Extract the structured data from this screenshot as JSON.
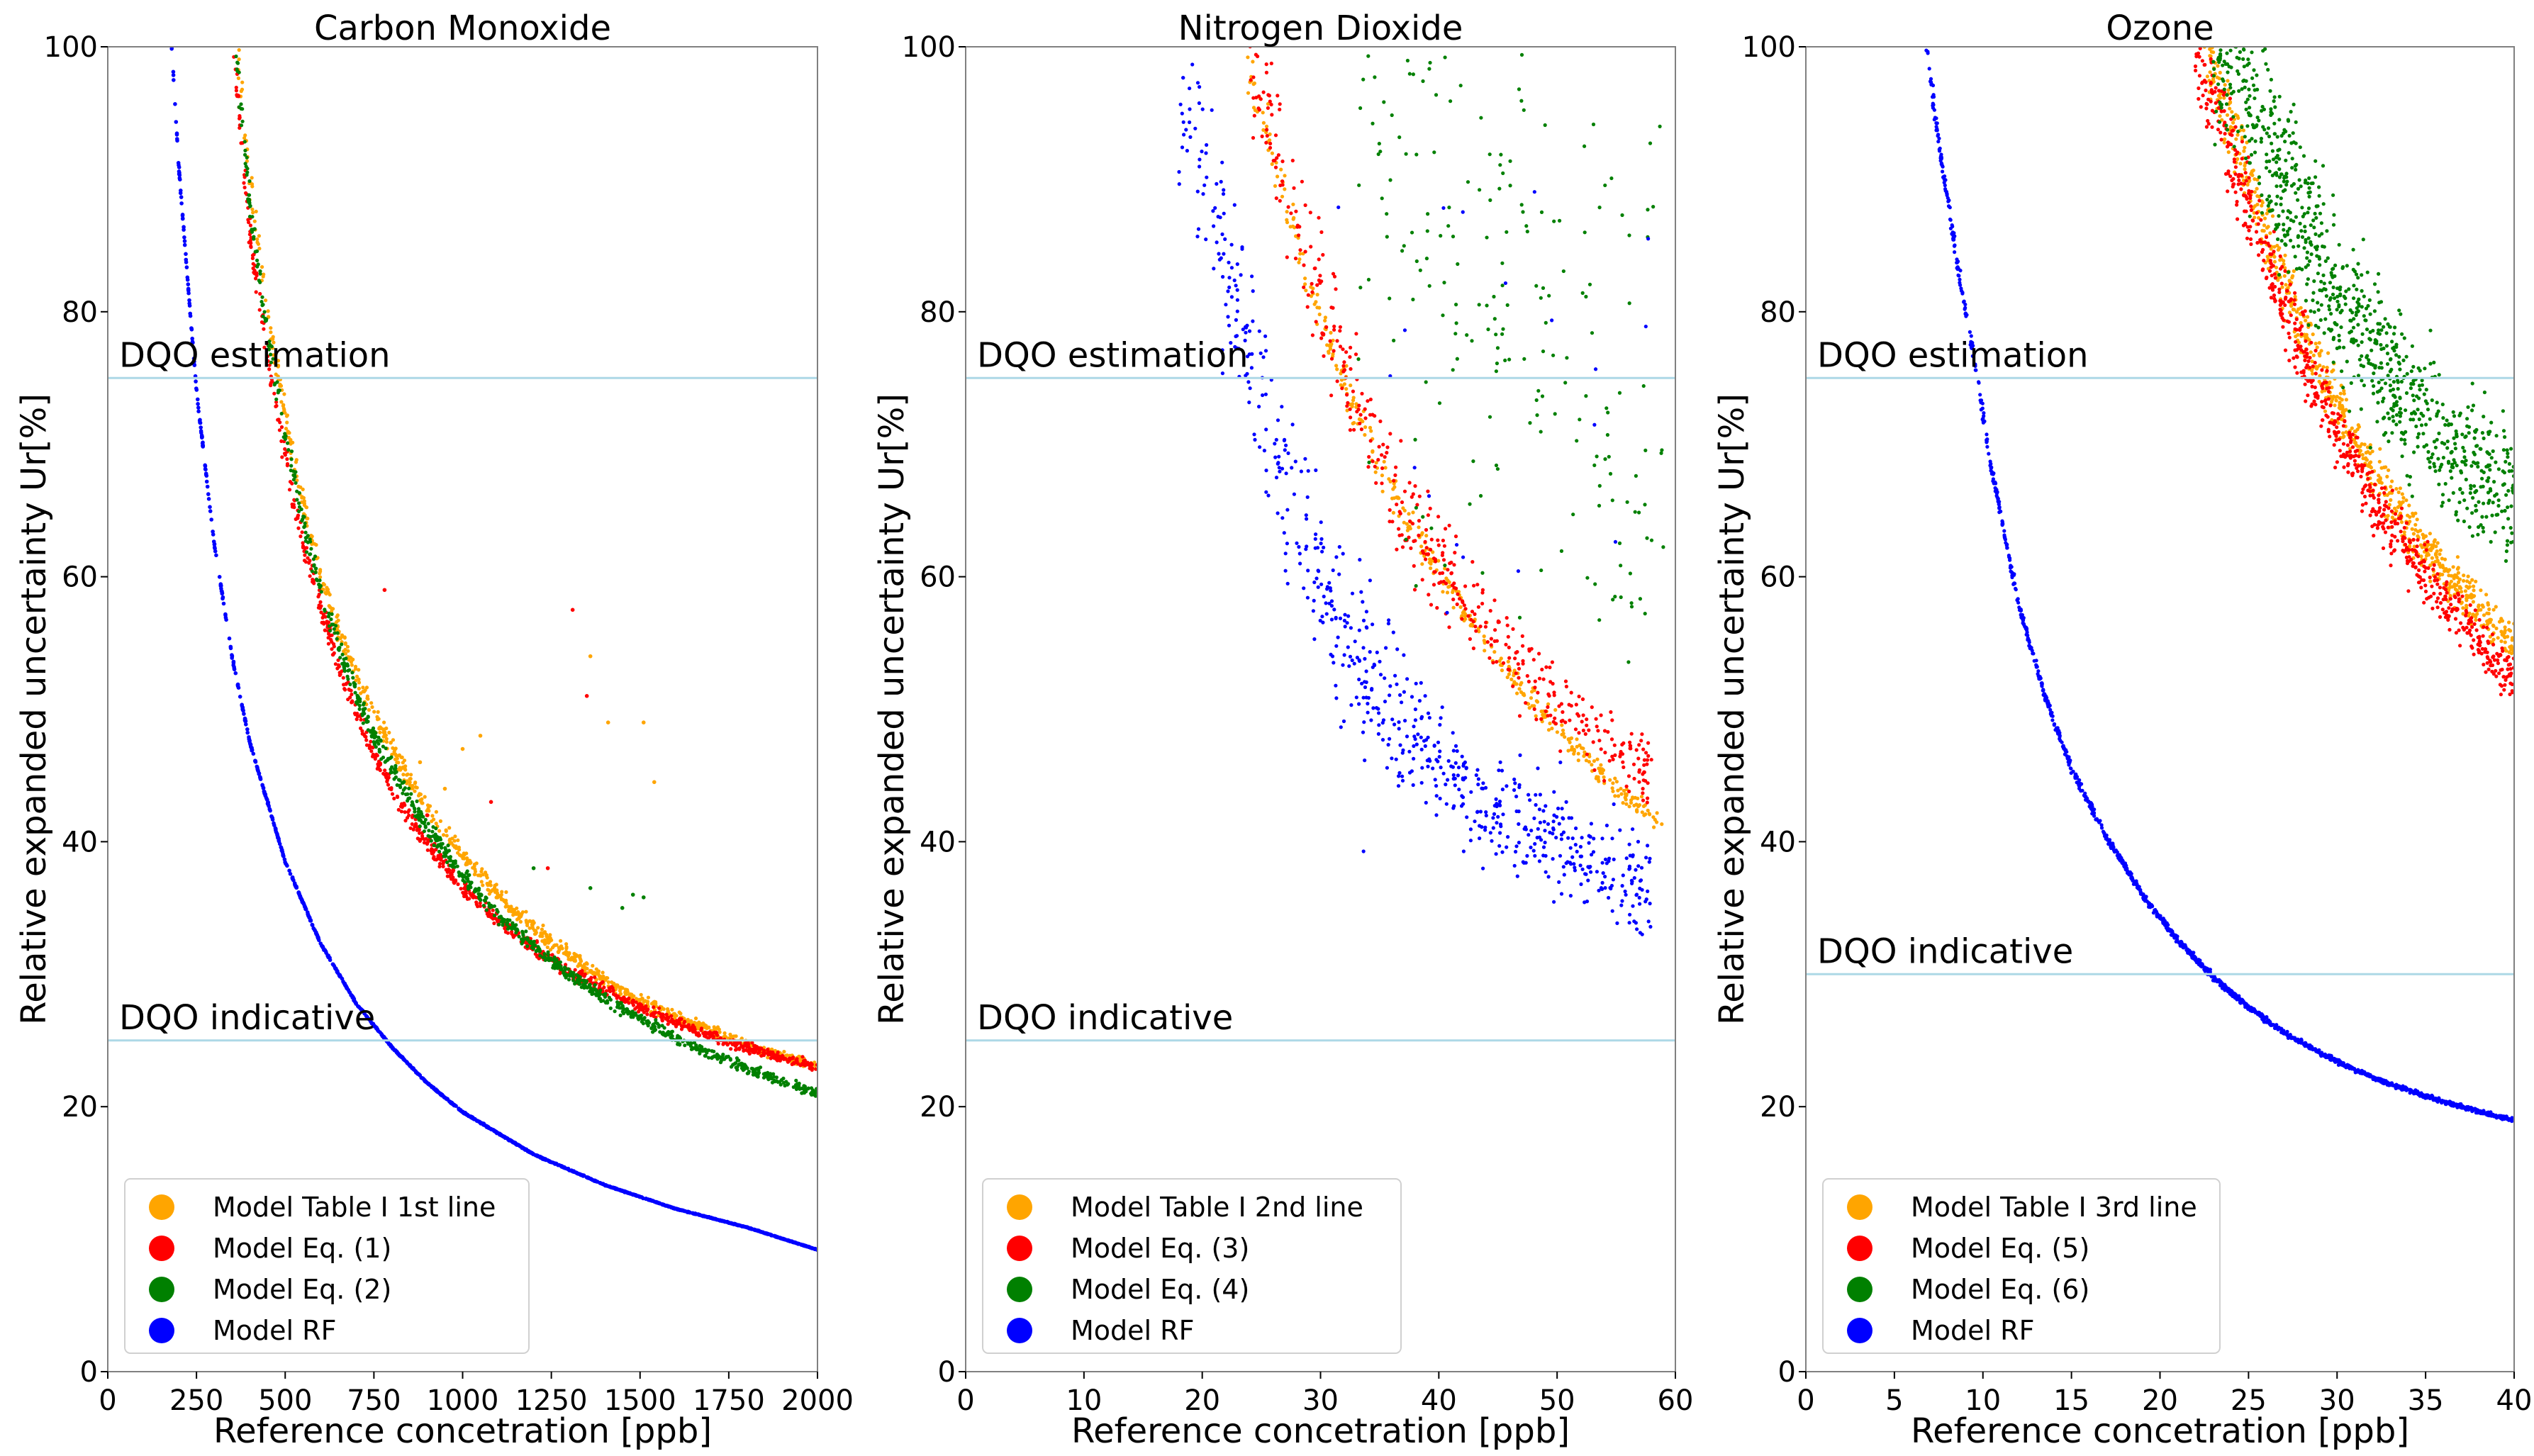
{
  "chart_data": [
    {
      "type": "scatter",
      "title": "Carbon Monoxide",
      "xlabel": "Reference concetration [ppb]",
      "ylabel": "Relative expanded uncertainty Ur[%]",
      "xlim": [
        0,
        2000
      ],
      "ylim": [
        0,
        100
      ],
      "xticks": [
        0,
        250,
        500,
        750,
        1000,
        1250,
        1500,
        1750,
        2000
      ],
      "xtick_labels": [
        "0",
        "250",
        "500",
        "750",
        "1000",
        "1250",
        "1500",
        "1750",
        "2000"
      ],
      "yticks": [
        0,
        20,
        40,
        60,
        80,
        100
      ],
      "ytick_labels": [
        "0",
        "20",
        "40",
        "60",
        "80",
        "100"
      ],
      "grid": false,
      "legend_position": "bottom-left",
      "reference_lines": [
        {
          "label": "DQO estimation",
          "y": 75,
          "color": "#add8e6"
        },
        {
          "label": "DQO indicative",
          "y": 25,
          "color": "#add8e6"
        }
      ],
      "series": [
        {
          "name": "Model Table I 1st line",
          "color": "#ffa500",
          "x": [
            365,
            400,
            450,
            500,
            550,
            600,
            650,
            700,
            750,
            800,
            900,
            1000,
            1100,
            1200,
            1300,
            1400,
            1500,
            1600,
            1700,
            1800,
            1900,
            2000
          ],
          "y": [
            100,
            90,
            80,
            72,
            65.5,
            60,
            56,
            52.5,
            49.5,
            47,
            42.5,
            39,
            36,
            33.5,
            31.5,
            29.5,
            28,
            26.8,
            25.7,
            24.7,
            23.8,
            23
          ]
        },
        {
          "name": "Model Eq. (1)",
          "color": "#ff0000",
          "x": [
            355,
            400,
            450,
            500,
            550,
            600,
            650,
            700,
            750,
            800,
            900,
            1000,
            1100,
            1200,
            1300,
            1400,
            1500,
            1600,
            1700,
            1800,
            1900,
            2000
          ],
          "y": [
            100,
            86,
            76.5,
            69,
            62.8,
            57.6,
            53.4,
            49.8,
            46.7,
            44,
            39.8,
            36.5,
            34,
            32,
            30.2,
            28.8,
            27.5,
            26.4,
            25.4,
            24.5,
            23.7,
            23
          ]
        },
        {
          "name": "Model Eq. (2)",
          "color": "#008000",
          "x": [
            360,
            400,
            450,
            500,
            550,
            600,
            650,
            700,
            750,
            800,
            900,
            1000,
            1100,
            1200,
            1300,
            1400,
            1500,
            1600,
            1700,
            1800,
            1900,
            2000
          ],
          "y": [
            100,
            88,
            78,
            70.5,
            64.2,
            59,
            54.8,
            51.2,
            48,
            45.5,
            41,
            37.5,
            34.5,
            32,
            30,
            28.2,
            26.6,
            25.2,
            24,
            22.9,
            21.9,
            21
          ]
        },
        {
          "name": "Model RF",
          "color": "#0000ff",
          "x": [
            180,
            200,
            250,
            300,
            350,
            400,
            500,
            600,
            700,
            800,
            900,
            1000,
            1200,
            1400,
            1600,
            1800,
            2000
          ],
          "y": [
            100,
            91,
            74,
            62.5,
            54,
            47.5,
            38.5,
            32.3,
            27.8,
            24.5,
            21.8,
            19.6,
            16.4,
            14.1,
            12.3,
            10.9,
            9.2
          ]
        }
      ],
      "outliers": [
        {
          "series": "Model Table I 1st line",
          "x": [
            1360,
            1410,
            1510,
            1540,
            1000,
            1050,
            880,
            950
          ],
          "y": [
            54,
            49,
            49,
            44.5,
            47,
            48,
            46,
            44
          ]
        },
        {
          "series": "Model Eq. (1)",
          "x": [
            1310,
            1350,
            1080,
            1240,
            780,
            900
          ],
          "y": [
            57.5,
            51,
            43,
            38,
            59,
            42
          ]
        },
        {
          "series": "Model Eq. (2)",
          "x": [
            1480,
            1510,
            1360,
            1450,
            1200
          ],
          "y": [
            36,
            35.8,
            36.5,
            35,
            38
          ]
        }
      ]
    },
    {
      "type": "scatter",
      "title": "Nitrogen Dioxide",
      "xlabel": "Reference concetration [ppb]",
      "ylabel": "Relative expanded uncertainty Ur[%]",
      "xlim": [
        0,
        60
      ],
      "ylim": [
        0,
        100
      ],
      "xticks": [
        0,
        10,
        20,
        30,
        40,
        50,
        60
      ],
      "xtick_labels": [
        "0",
        "10",
        "20",
        "30",
        "40",
        "50",
        "60"
      ],
      "yticks": [
        0,
        20,
        40,
        60,
        80,
        100
      ],
      "ytick_labels": [
        "0",
        "20",
        "40",
        "60",
        "80",
        "100"
      ],
      "grid": false,
      "legend_position": "bottom-left",
      "reference_lines": [
        {
          "label": "DQO estimation",
          "y": 75,
          "color": "#add8e6"
        },
        {
          "label": "DQO indicative",
          "y": 25,
          "color": "#add8e6"
        }
      ],
      "series": [
        {
          "name": "Model Table I 2nd line",
          "color": "#ffa500",
          "x": [
            23.5,
            25,
            27,
            29,
            31,
            33,
            35,
            37,
            39,
            41,
            43,
            45,
            47,
            49,
            51,
            53,
            55,
            57,
            59
          ],
          "y": [
            100,
            95,
            88.5,
            82.5,
            77,
            72.5,
            68.5,
            65,
            61.8,
            59,
            56.5,
            54,
            51.5,
            49.5,
            47.5,
            45.8,
            44.2,
            42.7,
            41.3
          ]
        },
        {
          "name": "Model Eq. (3)",
          "color": "#ff0000",
          "x": [
            24,
            26,
            28,
            30,
            32,
            34,
            36,
            38,
            40,
            42,
            44,
            46,
            48,
            50,
            52,
            54,
            56,
            58
          ],
          "y": [
            100,
            94,
            87,
            80.5,
            75.5,
            71,
            67,
            64,
            61,
            58.5,
            56.2,
            54,
            52,
            50.5,
            49,
            47.5,
            46.2,
            45
          ]
        },
        {
          "name": "Model Eq. (4)",
          "color": "#008000",
          "x": [
            33,
            35,
            38,
            40,
            42,
            45,
            47,
            50,
            52,
            55,
            58
          ],
          "y": [
            96,
            90,
            88,
            92,
            85,
            80,
            89,
            75,
            70,
            65,
            60
          ]
        },
        {
          "name": "Model RF",
          "color": "#0000ff",
          "x": [
            18,
            19,
            20,
            21,
            22,
            23,
            24,
            25,
            26,
            28,
            30,
            32,
            34,
            36,
            38,
            40,
            42,
            44,
            46,
            48,
            50,
            52,
            54,
            56,
            58
          ],
          "y": [
            100,
            96,
            92,
            88,
            84,
            80,
            76.5,
            73,
            70,
            64.5,
            60,
            56,
            53,
            50.5,
            48,
            46,
            44.5,
            43,
            42,
            41,
            40,
            39,
            38,
            37,
            36
          ]
        }
      ]
    },
    {
      "type": "scatter",
      "title": "Ozone",
      "xlabel": "Reference concetration [ppb]",
      "ylabel": "Relative expanded uncertainty Ur[%]",
      "xlim": [
        0,
        40
      ],
      "ylim": [
        0,
        100
      ],
      "xticks": [
        0,
        5,
        10,
        15,
        20,
        25,
        30,
        35,
        40
      ],
      "xtick_labels": [
        "0",
        "5",
        "10",
        "15",
        "20",
        "25",
        "30",
        "35",
        "40"
      ],
      "yticks": [
        0,
        20,
        40,
        60,
        80,
        100
      ],
      "ytick_labels": [
        "0",
        "20",
        "40",
        "60",
        "80",
        "100"
      ],
      "grid": false,
      "legend_position": "bottom-left",
      "reference_lines": [
        {
          "label": "DQO estimation",
          "y": 75,
          "color": "#add8e6"
        },
        {
          "label": "DQO indicative",
          "y": 30,
          "color": "#add8e6"
        }
      ],
      "series": [
        {
          "name": "Model Table I 3rd line",
          "color": "#ffa500",
          "x": [
            22.5,
            24,
            26,
            28,
            30,
            32,
            34,
            36,
            38,
            40
          ],
          "y": [
            100,
            94,
            86,
            79,
            73,
            68,
            64,
            60.5,
            57.5,
            55
          ]
        },
        {
          "name": "Model Eq. (5)",
          "color": "#ff0000",
          "x": [
            22,
            24,
            26,
            28,
            30,
            32,
            34,
            36,
            38,
            40
          ],
          "y": [
            100,
            92,
            84,
            77,
            71,
            66,
            62,
            58.5,
            55.5,
            52
          ]
        },
        {
          "name": "Model Eq. (6)",
          "color": "#008000",
          "x": [
            23,
            25,
            27,
            29,
            31,
            33,
            35,
            37,
            39,
            40
          ],
          "y": [
            100,
            96,
            90,
            84,
            79,
            75,
            72,
            69,
            67,
            66
          ]
        },
        {
          "name": "Model RF",
          "color": "#0000ff",
          "x": [
            6.8,
            7.5,
            8.5,
            9.5,
            10.5,
            12,
            13.5,
            15,
            17,
            19,
            21,
            23,
            25,
            27,
            29,
            31,
            33,
            35,
            37,
            39,
            40
          ],
          "y": [
            100,
            93,
            84,
            76.5,
            68,
            58,
            51,
            45.5,
            40.3,
            36,
            32.6,
            29.8,
            27.5,
            25.6,
            24.1,
            22.8,
            21.7,
            20.8,
            20,
            19.3,
            19
          ]
        }
      ]
    }
  ]
}
